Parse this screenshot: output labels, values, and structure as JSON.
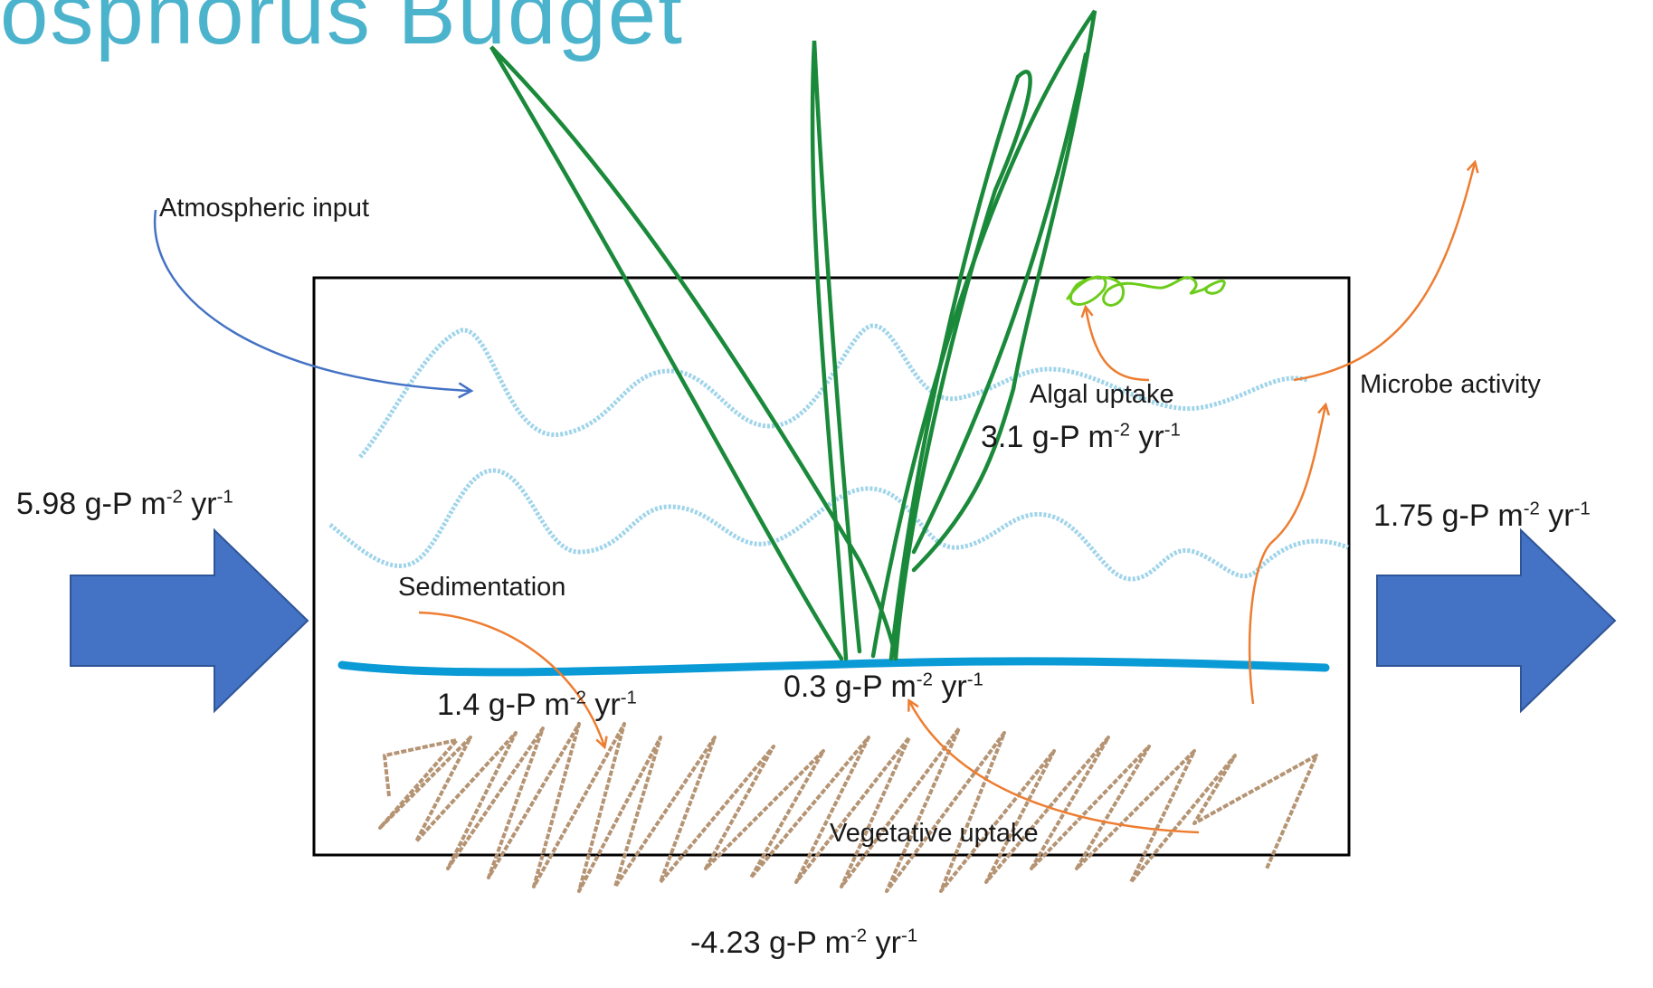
{
  "title": "osphorus Budget",
  "labels": {
    "atmospheric_input": "Atmospheric input",
    "algal_uptake": "Algal uptake",
    "microbe_activity": "Microbe activity",
    "sedimentation": "Sedimentation",
    "vegetative_uptake": "Vegetative uptake"
  },
  "rates": {
    "inflow": {
      "value": "5.98 g-P m",
      "exp1": "-2",
      "mid": " yr",
      "exp2": "-1"
    },
    "outflow": {
      "value": "1.75 g-P m",
      "exp1": "-2",
      "mid": " yr",
      "exp2": "-1"
    },
    "algal": {
      "value": "3.1 g-P m",
      "exp1": "-2",
      "mid": " yr",
      "exp2": "-1"
    },
    "sedimentation": {
      "value": "1.4 g-P m",
      "exp1": "-2",
      "mid": " yr",
      "exp2": "-1"
    },
    "vegetative": {
      "value": "0.3 g-P m",
      "exp1": "-2",
      "mid": " yr",
      "exp2": "-1"
    },
    "storage": {
      "value": "-4.23 g-P m",
      "exp1": "-2",
      "mid": " yr",
      "exp2": "-1"
    }
  },
  "colors": {
    "title": "#4bb3cc",
    "flow_arrow": "#4472c4",
    "atmospheric_arrow": "#4472c4",
    "process_arrow": "#ed7d31",
    "water_wave": "#9fd4ea",
    "sediment_surface": "#0a9ad6",
    "sediment_zigzag": "#b59474",
    "plant": "#1a8a3a",
    "algae": "#6ccc1a",
    "box_border": "#000000"
  }
}
